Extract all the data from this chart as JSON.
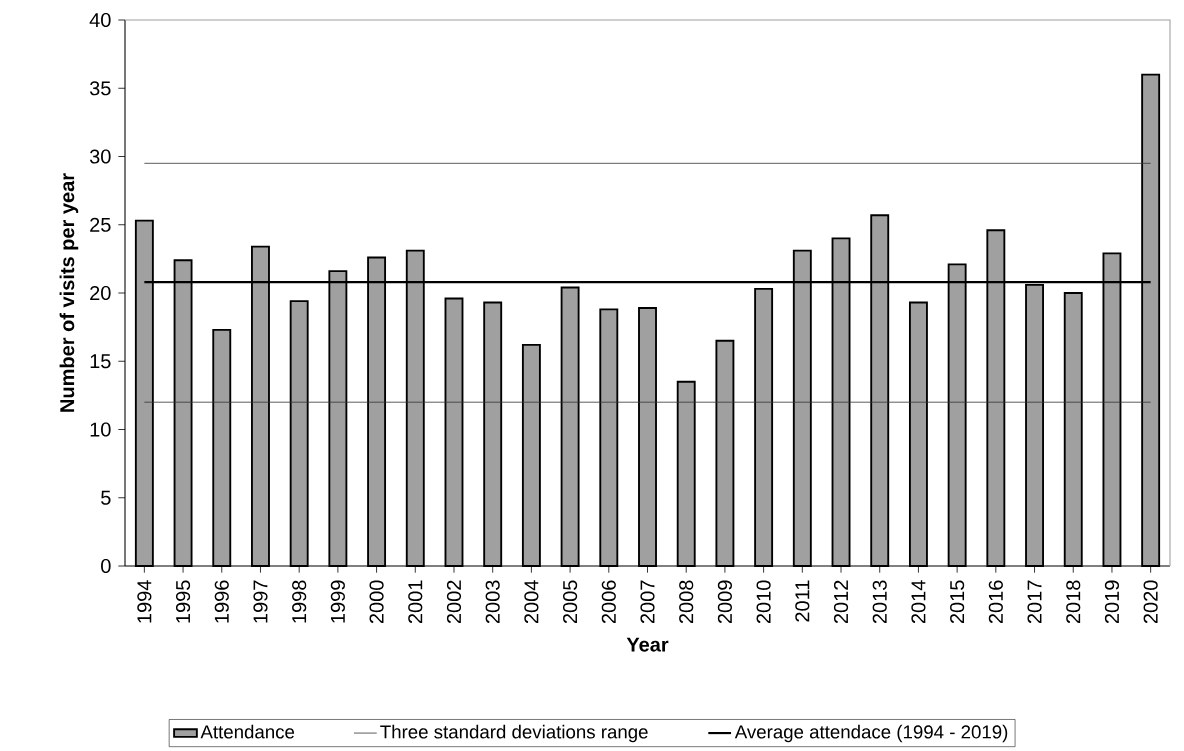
{
  "chart_data": {
    "type": "bar",
    "xlabel": "Year",
    "ylabel": "Number of visits per year",
    "categories": [
      "1994",
      "1995",
      "1996",
      "1997",
      "1998",
      "1999",
      "2000",
      "2001",
      "2002",
      "2003",
      "2004",
      "2005",
      "2006",
      "2007",
      "2008",
      "2009",
      "2010",
      "2011",
      "2012",
      "2013",
      "2014",
      "2015",
      "2016",
      "2017",
      "2018",
      "2019",
      "2020"
    ],
    "series": [
      {
        "name": "Attendance",
        "color": "#a0a0a0",
        "values": [
          25.3,
          22.4,
          17.3,
          23.4,
          19.4,
          21.6,
          22.6,
          23.1,
          19.6,
          19.3,
          16.2,
          20.4,
          18.8,
          18.9,
          13.5,
          16.5,
          20.3,
          23.1,
          24.0,
          25.7,
          19.3,
          22.1,
          24.6,
          20.6,
          20.0,
          22.9,
          36.0
        ]
      },
      {
        "name": "Three standard deviations range",
        "type": "line",
        "color": "#333333",
        "values": [
          29.5,
          29.5,
          29.5,
          29.5,
          29.5,
          29.5,
          29.5,
          29.5,
          29.5,
          29.5,
          29.5,
          29.5,
          29.5,
          29.5,
          29.5,
          29.5,
          29.5,
          29.5,
          29.5,
          29.5,
          29.5,
          29.5,
          29.5,
          29.5,
          29.5,
          29.5,
          29.5
        ]
      },
      {
        "type": "line",
        "color": "#333333",
        "values": [
          12.0,
          12.0,
          12.0,
          12.0,
          12.0,
          12.0,
          12.0,
          12.0,
          12.0,
          12.0,
          12.0,
          12.0,
          12.0,
          12.0,
          12.0,
          12.0,
          12.0,
          12.0,
          12.0,
          12.0,
          12.0,
          12.0,
          12.0,
          12.0,
          12.0,
          12.0,
          12.0
        ]
      },
      {
        "name": "Average attendace (1994 - 2019)",
        "type": "line",
        "color": "#000000",
        "values": [
          20.8,
          20.8,
          20.8,
          20.8,
          20.8,
          20.8,
          20.8,
          20.8,
          20.8,
          20.8,
          20.8,
          20.8,
          20.8,
          20.8,
          20.8,
          20.8,
          20.8,
          20.8,
          20.8,
          20.8,
          20.8,
          20.8,
          20.8,
          20.8,
          20.8,
          20.8,
          20.8
        ]
      }
    ],
    "ylim": [
      0,
      40
    ],
    "yticks": [
      0,
      5,
      10,
      15,
      20,
      25,
      30,
      35,
      40
    ],
    "grid": false,
    "legend": "bottom",
    "marker": "none"
  }
}
